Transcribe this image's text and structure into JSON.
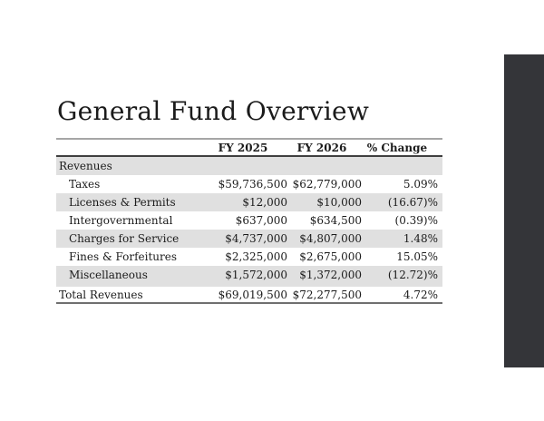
{
  "slide": {
    "title": "General Fund Overview",
    "accent_bar_color": "#343539",
    "row_shade_color": "#e0e0e0"
  },
  "table": {
    "columns": [
      "",
      "FY 2025",
      "FY 2026",
      "% Change"
    ],
    "rows": [
      {
        "kind": "section",
        "indent": false,
        "shaded": true,
        "label": "Revenues",
        "fy2025": "",
        "fy2026": "",
        "change": ""
      },
      {
        "kind": "item",
        "indent": true,
        "shaded": false,
        "label": "Taxes",
        "fy2025": "$59,736,500",
        "fy2026": "$62,779,000",
        "change": "5.09%"
      },
      {
        "kind": "item",
        "indent": true,
        "shaded": true,
        "label": "Licenses & Permits",
        "fy2025": "$12,000",
        "fy2026": "$10,000",
        "change": "(16.67)%"
      },
      {
        "kind": "item",
        "indent": true,
        "shaded": false,
        "label": "Intergovernmental",
        "fy2025": "$637,000",
        "fy2026": "$634,500",
        "change": "(0.39)%"
      },
      {
        "kind": "item",
        "indent": true,
        "shaded": true,
        "label": "Charges for Service",
        "fy2025": "$4,737,000",
        "fy2026": "$4,807,000",
        "change": "1.48%"
      },
      {
        "kind": "item",
        "indent": true,
        "shaded": false,
        "label": "Fines & Forfeitures",
        "fy2025": "$2,325,000",
        "fy2026": "$2,675,000",
        "change": "15.05%"
      },
      {
        "kind": "item",
        "indent": true,
        "shaded": true,
        "label": "Miscellaneous",
        "fy2025": "$1,572,000",
        "fy2026": "$1,372,000",
        "change": "(12.72)%"
      },
      {
        "kind": "spacer",
        "indent": false,
        "shaded": true,
        "label": "",
        "fy2025": "",
        "fy2026": "",
        "change": ""
      },
      {
        "kind": "total",
        "indent": false,
        "shaded": false,
        "label": "Total Revenues",
        "fy2025": "$69,019,500",
        "fy2026": "$72,277,500",
        "change": "4.72%"
      }
    ]
  }
}
